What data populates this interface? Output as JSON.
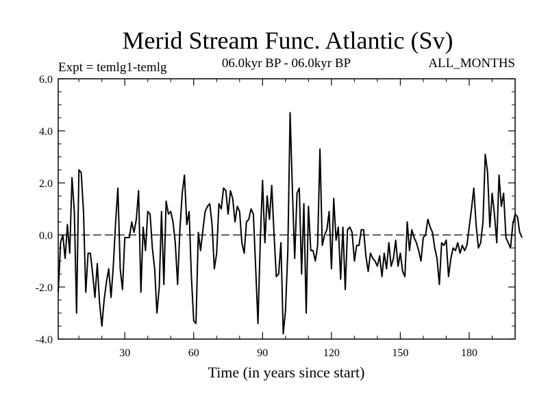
{
  "chart_data": {
    "type": "line",
    "title": "Merid Stream Func. Atlantic (Sv)",
    "subtitle": "06.0kyr BP - 06.0kyr BP",
    "left_annotation": "Expt = temlg1-temlg",
    "right_annotation": "ALL_MONTHS",
    "xlabel": "Time (in years since start)",
    "ylabel": "",
    "xlim": [
      1,
      200
    ],
    "ylim": [
      -4.0,
      6.0
    ],
    "x_ticks": [
      30,
      60,
      90,
      120,
      150,
      180
    ],
    "x_tick_labels": [
      "30",
      "60",
      "90",
      "120",
      "150",
      "180"
    ],
    "y_ticks": [
      -4.0,
      -2.0,
      0.0,
      2.0,
      4.0,
      6.0
    ],
    "y_tick_labels": [
      "-4.0",
      "-2.0",
      "0.0",
      "2.0",
      "4.0",
      "6.0"
    ],
    "reference_line": 0.0,
    "series": [
      {
        "name": "Merid Stream Func. Atlantic",
        "values": [
          -2.2,
          -0.3,
          0.0,
          -0.9,
          0.4,
          -0.7,
          2.2,
          0.9,
          -3.0,
          2.5,
          2.4,
          0.9,
          -2.2,
          -0.7,
          -0.7,
          -1.5,
          -2.4,
          -1.1,
          -2.6,
          -3.5,
          -2.5,
          -1.8,
          -1.3,
          -2.4,
          -1.2,
          0.5,
          1.8,
          -1.3,
          -2.1,
          -0.1,
          -0.1,
          -0.1,
          0.5,
          0.1,
          0.6,
          1.7,
          -2.2,
          0.3,
          -0.6,
          0.9,
          0.8,
          -0.5,
          -1.3,
          -3.0,
          -2.0,
          0.9,
          -1.9,
          1.3,
          0.8,
          0.9,
          0.5,
          -0.3,
          -1.9,
          0.2,
          1.6,
          2.3,
          0.4,
          0.9,
          -1.6,
          -3.3,
          -3.4,
          0.1,
          -0.6,
          0.2,
          0.9,
          1.1,
          1.2,
          0.4,
          -1.3,
          -0.7,
          1.2,
          1.0,
          1.8,
          1.7,
          0.8,
          1.7,
          1.4,
          0.5,
          1.1,
          0.9,
          -0.3,
          -0.7,
          0.5,
          0.6,
          1.0,
          0.8,
          -1.3,
          -3.4,
          -0.2,
          2.1,
          -0.3,
          1.5,
          0.6,
          1.9,
          0.0,
          -1.6,
          -1.5,
          -0.3,
          -3.8,
          -2.9,
          -0.6,
          4.7,
          1.7,
          -0.9,
          1.6,
          1.8,
          -1.5,
          1.2,
          -3.0,
          1.1,
          -0.6,
          -0.6,
          -1.0,
          -0.4,
          3.3,
          -0.4,
          0.0,
          0.2,
          0.9,
          -1.3,
          1.4,
          -0.2,
          0.3,
          -1.7,
          0.3,
          -2.1,
          0.2,
          0.3,
          0.1,
          -1.0,
          -0.4,
          -0.4,
          0.2,
          0.2,
          -0.8,
          -1.4,
          -0.7,
          -0.9,
          -1.0,
          -1.2,
          -0.8,
          -1.6,
          -0.7,
          -1.3,
          -0.3,
          -1.2,
          -0.9,
          -0.2,
          -1.2,
          -0.7,
          -1.4,
          -1.6,
          0.5,
          -0.6,
          0.2,
          -0.1,
          -0.3,
          -0.6,
          -1.0,
          -0.1,
          0.0,
          0.6,
          0.3,
          0.1,
          -0.5,
          -0.9,
          -1.9,
          -0.3,
          -0.4,
          -0.2,
          -1.6,
          -0.9,
          -0.5,
          -0.6,
          -0.3,
          -0.7,
          -0.4,
          -0.6,
          -0.4,
          0.3,
          1.0,
          1.8,
          0.4,
          -0.5,
          -0.3,
          0.5,
          3.1,
          2.4,
          0.3,
          1.6,
          0.8,
          -0.3,
          2.3,
          1.1,
          1.6,
          -0.1,
          -0.3,
          -0.5,
          0.4,
          0.8,
          0.7,
          0.1,
          -0.1
        ]
      }
    ]
  }
}
